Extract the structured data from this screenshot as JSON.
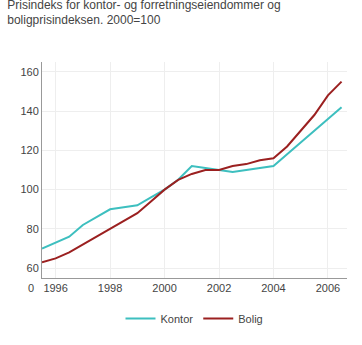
{
  "chart_data": {
    "type": "line",
    "title": "Prisindeks for kontor- og forretningseiendommer og\nboligprisindeksen. 2000=100",
    "annotations": [
      "0"
    ],
    "x": [
      1995.5,
      1996,
      1996.5,
      1997,
      1997.5,
      1998,
      1998.5,
      1999,
      1999.5,
      2000,
      2000.5,
      2001,
      2001.5,
      2002,
      2002.5,
      2003,
      2003.5,
      2004,
      2004.5,
      2005,
      2005.5,
      2006,
      2006.5
    ],
    "series": [
      {
        "name": "Kontor",
        "color": "#3dbfbf",
        "values": [
          70,
          73,
          76,
          82,
          86,
          90,
          91,
          92,
          96,
          100,
          105,
          112,
          111,
          110,
          109,
          110,
          111,
          112,
          118,
          124,
          130,
          136,
          142
        ]
      },
      {
        "name": "Bolig",
        "color": "#9b2020",
        "values": [
          63,
          65,
          68,
          72,
          76,
          80,
          84,
          88,
          94,
          100,
          105,
          108,
          110,
          110,
          112,
          113,
          115,
          116,
          122,
          130,
          138,
          148,
          155
        ]
      }
    ],
    "xlim": [
      1995.5,
      2006.7
    ],
    "ylim": [
      55,
      165
    ],
    "xticks": [
      1996,
      1998,
      2000,
      2002,
      2004,
      2006
    ],
    "yticks": [
      60,
      80,
      100,
      120,
      140,
      160
    ],
    "grid": true,
    "legend": "bottom"
  }
}
